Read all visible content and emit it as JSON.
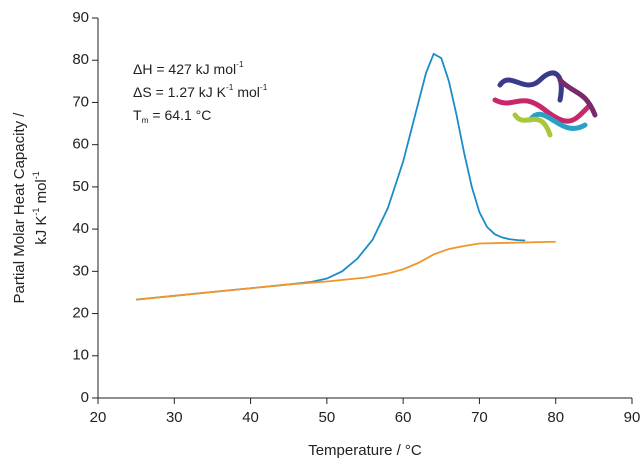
{
  "chart_data": {
    "type": "line",
    "xlabel": "Temperature / °C",
    "ylabel": [
      [
        {
          "text": "Partial Molar Heat Capacity /"
        }
      ],
      [
        {
          "text": "kJ K"
        },
        {
          "text": "-1",
          "sup": true
        },
        {
          "text": " mol"
        },
        {
          "text": "-1",
          "sup": true
        }
      ]
    ],
    "annotations": [
      [
        {
          "text": "ΔH = 427 kJ mol"
        },
        {
          "text": "-1",
          "sup": true
        }
      ],
      [
        {
          "text": "ΔS = 1.27 kJ K"
        },
        {
          "text": "-1",
          "sup": true
        },
        {
          "text": " mol"
        },
        {
          "text": "-1",
          "sup": true
        }
      ],
      [
        {
          "text": "T"
        },
        {
          "text": "m",
          "sub": true
        },
        {
          "text": " = 64.1 °C"
        }
      ]
    ],
    "xlim": [
      20,
      90
    ],
    "xticks": [
      20,
      30,
      40,
      50,
      60,
      70,
      80,
      90
    ],
    "ylim": [
      0,
      90
    ],
    "yticks": [
      0,
      10,
      20,
      30,
      40,
      50,
      60,
      70,
      80,
      90
    ],
    "series": [
      {
        "color": "#1a8cc8",
        "x": [
          25,
          30,
          35,
          40,
          45,
          48,
          50,
          52,
          54,
          56,
          58,
          60,
          61,
          62,
          63,
          64,
          65,
          66,
          67,
          68,
          69,
          70,
          71,
          72,
          73,
          74,
          75,
          76
        ],
        "values": [
          23.3,
          24.2,
          25.1,
          26.0,
          26.9,
          27.5,
          28.3,
          30.0,
          33,
          37.5,
          45,
          56,
          63,
          70,
          77,
          81.5,
          80.5,
          75,
          67,
          58,
          50,
          44,
          40.5,
          38.8,
          38,
          37.6,
          37.4,
          37.3
        ]
      },
      {
        "color": "#f0962a",
        "x": [
          25,
          30,
          35,
          40,
          45,
          50,
          55,
          58,
          60,
          62,
          64,
          66,
          68,
          70,
          75,
          80
        ],
        "values": [
          23.3,
          24.2,
          25.1,
          26.0,
          26.9,
          27.6,
          28.5,
          29.5,
          30.5,
          32,
          34,
          35.3,
          36,
          36.6,
          36.8,
          37
        ]
      }
    ]
  }
}
